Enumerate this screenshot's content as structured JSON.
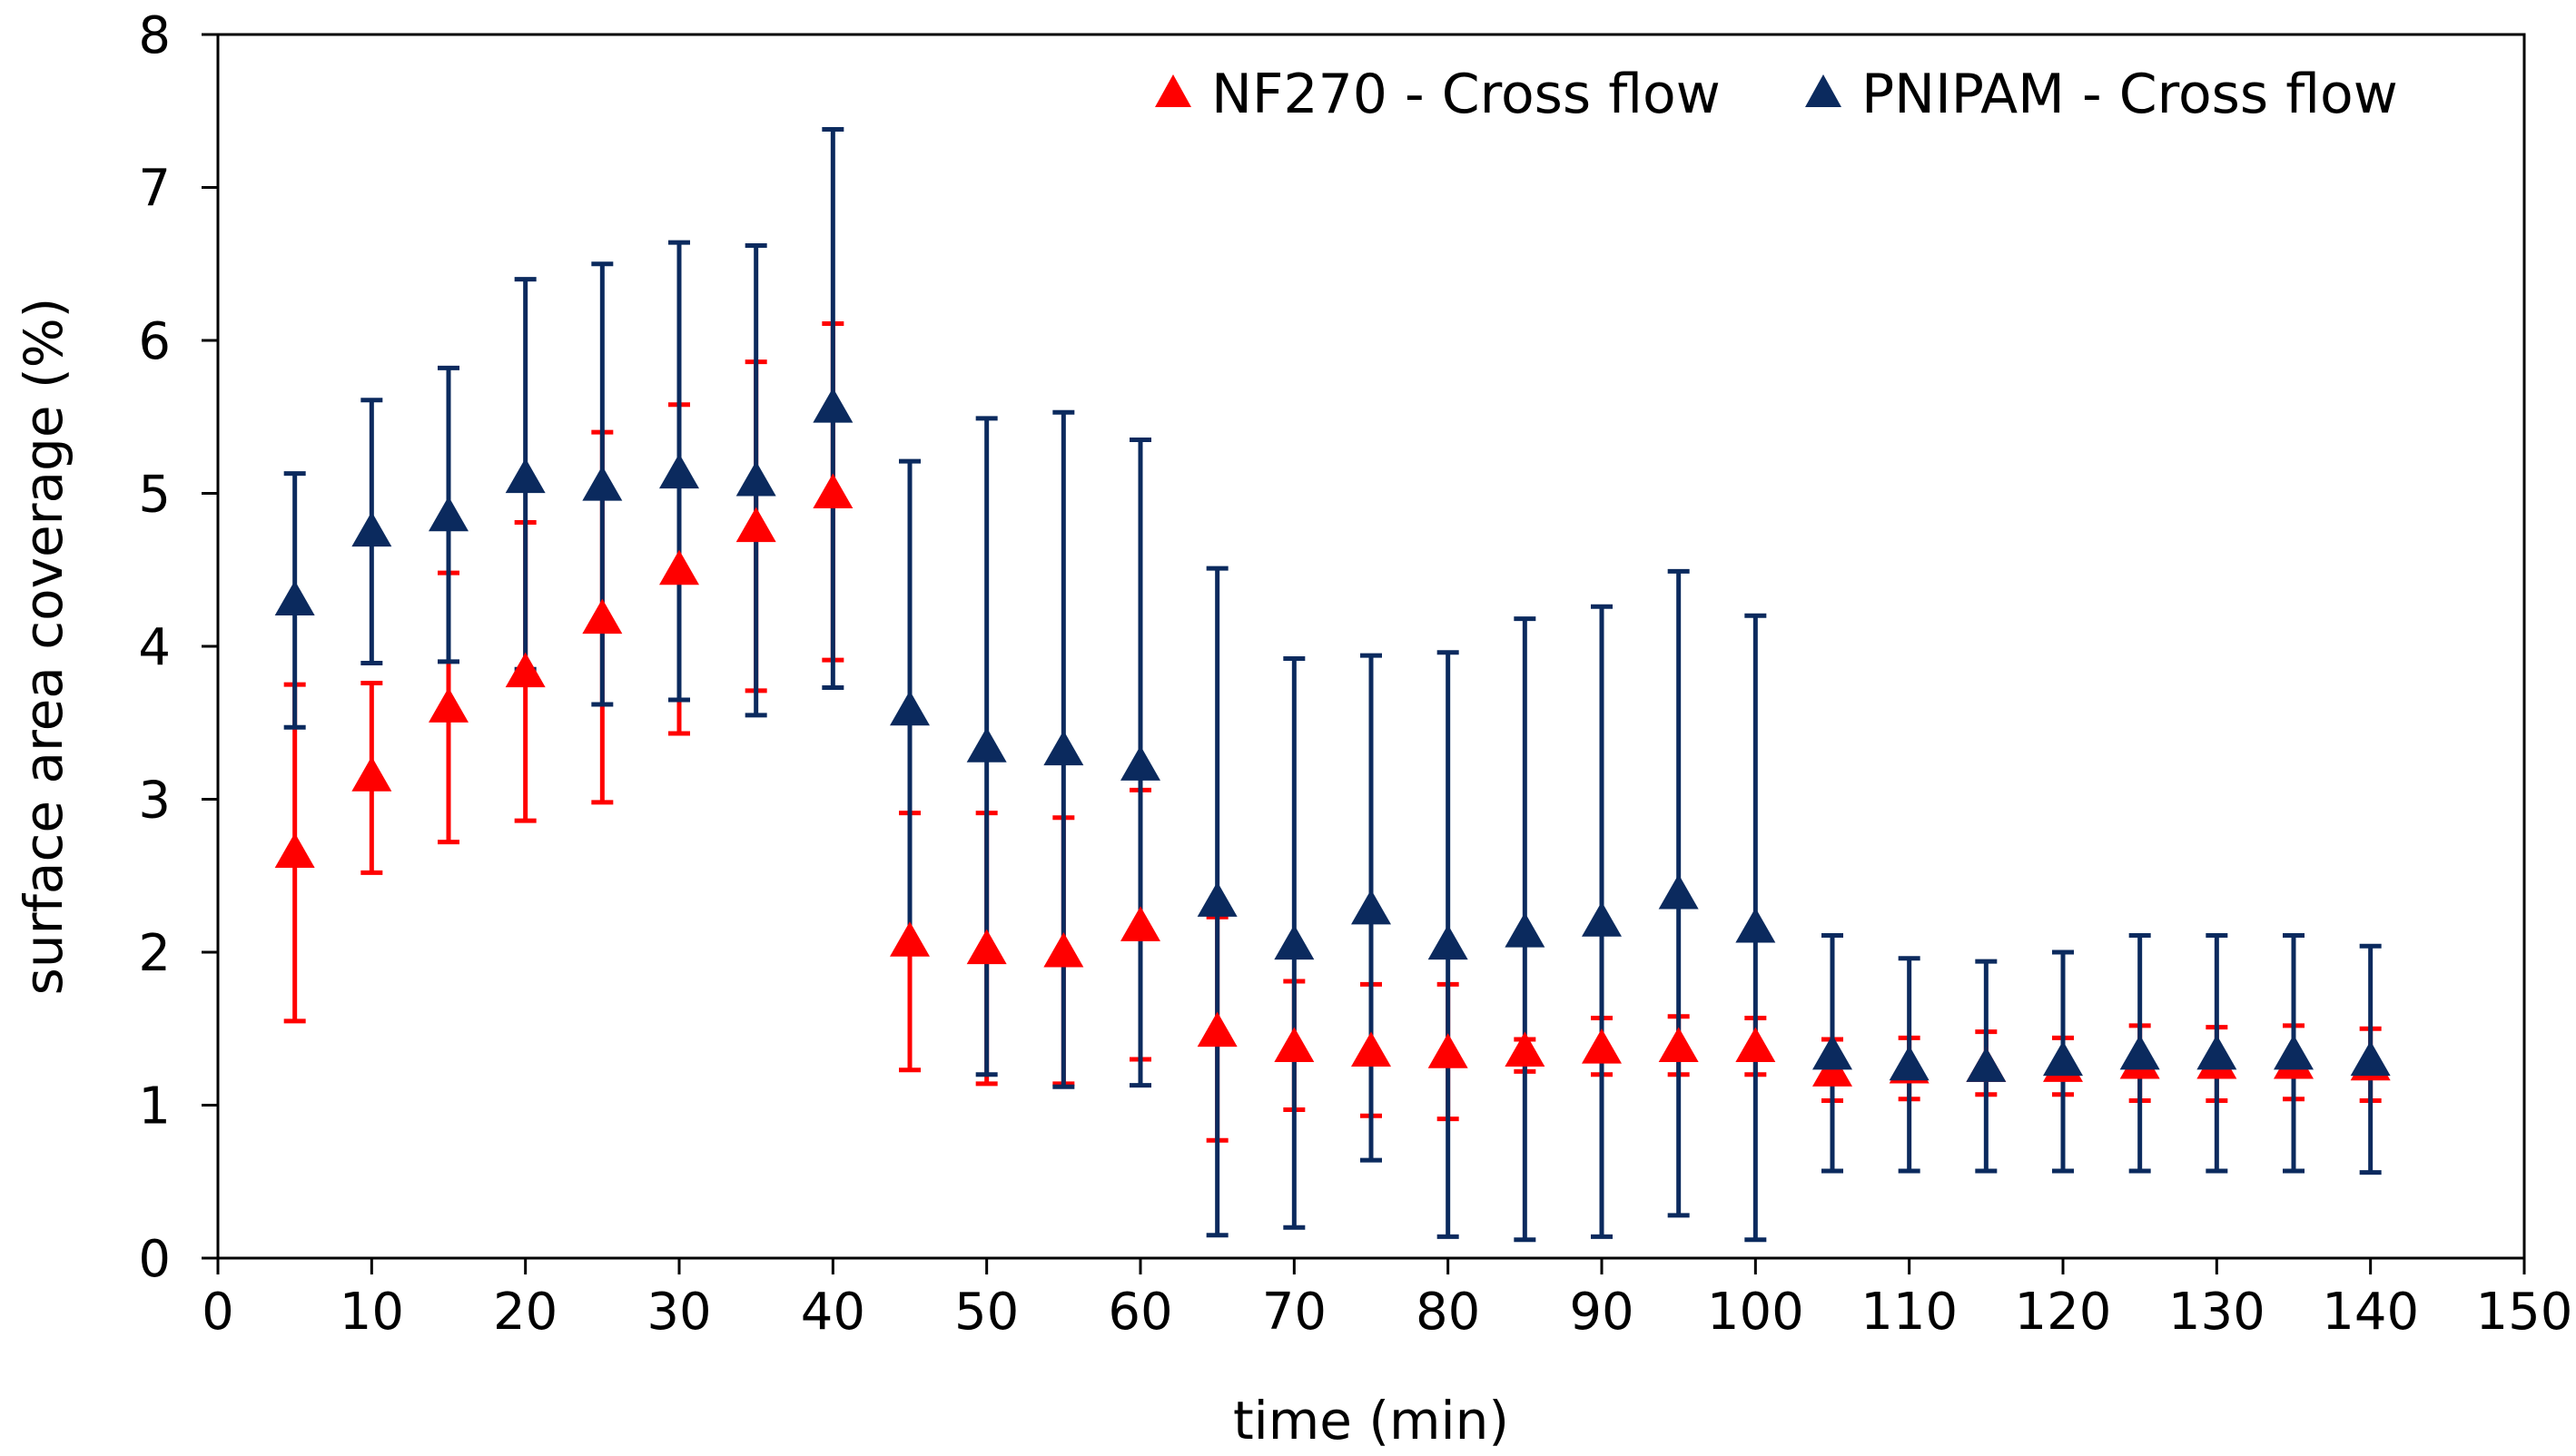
{
  "chart_data": {
    "type": "scatter",
    "title": "",
    "xlabel": "time (min)",
    "ylabel": "surface area coverage (%)",
    "xlim": [
      0,
      150
    ],
    "ylim": [
      0,
      8
    ],
    "xticks": [
      "0",
      "10",
      "20",
      "30",
      "40",
      "50",
      "60",
      "70",
      "80",
      "90",
      "100",
      "110",
      "120",
      "130",
      "140",
      "150"
    ],
    "yticks": [
      "0",
      "1",
      "2",
      "3",
      "4",
      "5",
      "6",
      "7",
      "8"
    ],
    "grid": false,
    "legend_position": "top-right",
    "series": [
      {
        "name": "NF270 - Cross flow",
        "color": "#ff0000",
        "marker": "triangle",
        "x": [
          5,
          10,
          15,
          20,
          25,
          30,
          35,
          40,
          45,
          50,
          55,
          60,
          65,
          70,
          75,
          80,
          85,
          90,
          95,
          100,
          105,
          110,
          115,
          120,
          125,
          130,
          135,
          140
        ],
        "y": [
          2.65,
          3.15,
          3.6,
          3.83,
          4.18,
          4.5,
          4.78,
          5.0,
          2.07,
          2.02,
          2.0,
          2.17,
          1.48,
          1.38,
          1.35,
          1.34,
          1.35,
          1.37,
          1.38,
          1.38,
          1.22,
          1.24,
          1.25,
          1.25,
          1.27,
          1.27,
          1.27,
          1.26
        ],
        "err_low": [
          1.55,
          2.52,
          2.72,
          2.86,
          2.98,
          3.43,
          3.71,
          3.91,
          1.23,
          1.14,
          1.14,
          1.3,
          0.77,
          0.97,
          0.93,
          0.91,
          1.22,
          1.2,
          1.2,
          1.2,
          1.03,
          1.04,
          1.07,
          1.07,
          1.03,
          1.03,
          1.04,
          1.03
        ],
        "err_high": [
          3.75,
          3.76,
          4.48,
          4.81,
          5.4,
          5.58,
          5.86,
          6.11,
          2.91,
          2.91,
          2.88,
          3.06,
          2.23,
          1.81,
          1.79,
          1.79,
          1.43,
          1.57,
          1.58,
          1.57,
          1.43,
          1.44,
          1.48,
          1.44,
          1.52,
          1.51,
          1.52,
          1.5
        ]
      },
      {
        "name": "PNIPAM - Cross flow",
        "color": "#0b2a5e",
        "marker": "triangle",
        "x": [
          5,
          10,
          15,
          20,
          25,
          30,
          35,
          40,
          45,
          50,
          55,
          60,
          65,
          70,
          75,
          80,
          85,
          90,
          95,
          100,
          105,
          110,
          115,
          120,
          125,
          130,
          135,
          140
        ],
        "y": [
          4.3,
          4.75,
          4.85,
          5.1,
          5.05,
          5.13,
          5.08,
          5.56,
          3.58,
          3.34,
          3.32,
          3.22,
          2.33,
          2.05,
          2.28,
          2.05,
          2.13,
          2.2,
          2.38,
          2.16,
          1.33,
          1.26,
          1.25,
          1.29,
          1.33,
          1.33,
          1.33,
          1.29
        ],
        "err_low": [
          3.47,
          3.89,
          3.9,
          3.85,
          3.62,
          3.65,
          3.55,
          3.73,
          1.99,
          1.2,
          1.12,
          1.13,
          0.15,
          0.2,
          0.64,
          0.14,
          0.12,
          0.14,
          0.28,
          0.12,
          0.57,
          0.57,
          0.57,
          0.57,
          0.57,
          0.57,
          0.57,
          0.56
        ],
        "err_high": [
          5.13,
          5.61,
          5.82,
          6.4,
          6.5,
          6.64,
          6.62,
          7.38,
          5.21,
          5.49,
          5.53,
          5.35,
          4.51,
          3.92,
          3.94,
          3.96,
          4.18,
          4.26,
          4.49,
          4.2,
          2.11,
          1.96,
          1.94,
          2.0,
          2.11,
          2.11,
          2.11,
          2.04
        ]
      }
    ]
  }
}
